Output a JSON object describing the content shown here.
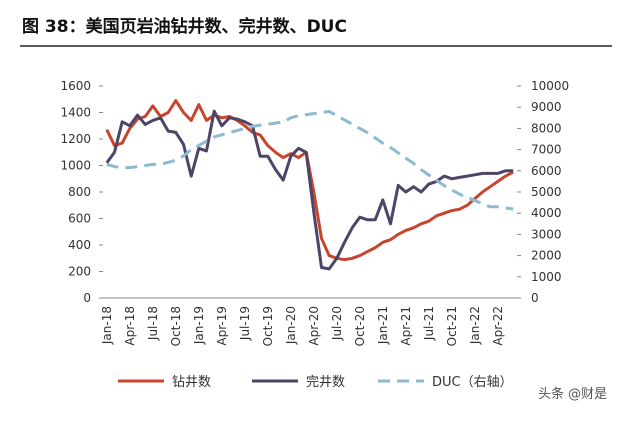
{
  "chart_data": {
    "type": "line",
    "title": "图 38：美国页岩油钻井数、完井数、DUC",
    "watermark": "头条 @财是",
    "categories": [
      "Jan-18",
      null,
      null,
      "Apr-18",
      null,
      null,
      "Jul-18",
      null,
      null,
      "Oct-18",
      null,
      null,
      "Jan-19",
      null,
      null,
      "Apr-19",
      null,
      null,
      "Jul-19",
      null,
      null,
      "Oct-19",
      null,
      null,
      "Jan-20",
      null,
      null,
      "Apr-20",
      null,
      null,
      "Jul-20",
      null,
      null,
      "Oct-20",
      null,
      null,
      "Jan-21",
      null,
      null,
      "Apr-21",
      null,
      null,
      "Jul-21",
      null,
      null,
      "Oct-21",
      null,
      null,
      "Jan-22",
      null,
      null,
      "Apr-22",
      null,
      null
    ],
    "series": [
      {
        "name": "钻井数",
        "color": "#c8452b",
        "dash": false,
        "values": [
          1270,
          1150,
          1170,
          1280,
          1350,
          1370,
          1450,
          1370,
          1400,
          1490,
          1400,
          1340,
          1460,
          1340,
          1380,
          1360,
          1370,
          1340,
          1300,
          1250,
          1230,
          1150,
          1100,
          1060,
          1090,
          1060,
          1100,
          800,
          450,
          320,
          300,
          290,
          300,
          320,
          350,
          380,
          420,
          440,
          480,
          510,
          530,
          560,
          580,
          620,
          640,
          660,
          670,
          700,
          750,
          800,
          840,
          880,
          920,
          950
        ]
      },
      {
        "name": "完井数",
        "color": "#4e4468",
        "dash": false,
        "values": [
          1020,
          1100,
          1330,
          1300,
          1380,
          1310,
          1340,
          1360,
          1260,
          1250,
          1160,
          920,
          1130,
          1110,
          1410,
          1300,
          1360,
          1350,
          1330,
          1300,
          1070,
          1070,
          970,
          890,
          1070,
          1130,
          1100,
          650,
          230,
          220,
          300,
          420,
          530,
          610,
          590,
          590,
          740,
          560,
          850,
          800,
          840,
          800,
          860,
          880,
          920,
          900,
          910,
          920,
          930,
          940,
          940,
          940,
          960,
          960
        ]
      },
      {
        "name": "DUC（右轴）",
        "color": "#8dbad0",
        "dash": true,
        "axis": "y2",
        "values": [
          6300,
          6200,
          6150,
          6150,
          6200,
          6250,
          6300,
          6300,
          6400,
          6500,
          6700,
          7000,
          7200,
          7400,
          7600,
          7700,
          7800,
          7900,
          8000,
          8100,
          8150,
          8200,
          8250,
          8300,
          8500,
          8600,
          8650,
          8700,
          8750,
          8800,
          8600,
          8400,
          8200,
          8000,
          7800,
          7550,
          7300,
          7100,
          6850,
          6600,
          6350,
          6050,
          5800,
          5550,
          5300,
          5100,
          4900,
          4750,
          4600,
          4450,
          4300,
          4300,
          4250,
          4200
        ]
      }
    ],
    "ylim": [
      0,
      1600
    ],
    "yticks": [
      0,
      200,
      400,
      600,
      800,
      1000,
      1200,
      1400,
      1600
    ],
    "y2lim": [
      0,
      10000
    ],
    "y2ticks": [
      0,
      1000,
      2000,
      3000,
      4000,
      5000,
      6000,
      7000,
      8000,
      9000,
      10000
    ],
    "legend": "bottom"
  }
}
